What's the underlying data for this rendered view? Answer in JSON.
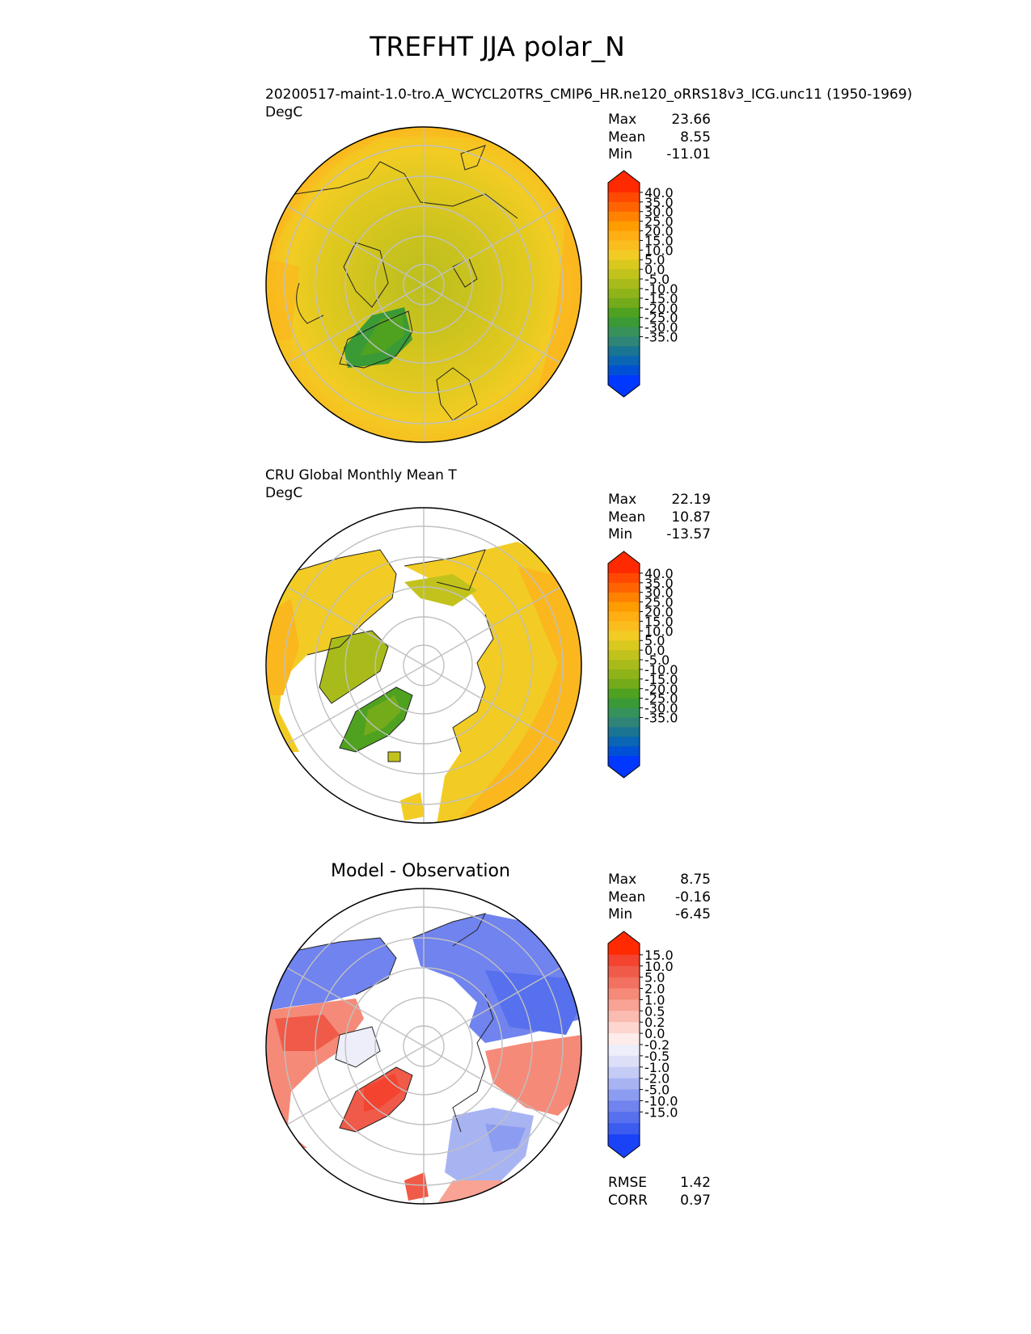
{
  "title": "TREFHT JJA polar_N",
  "panels": [
    {
      "id": "test",
      "title": "20200517-maint-1.0-tro.A_WCYCL20TRS_CMIP6_HR.ne120_oRRS18v3_ICG.unc11 (1950-1969)",
      "units": "DegC",
      "stats": {
        "max_label": "Max",
        "max": "23.66",
        "mean_label": "Mean",
        "mean": "8.55",
        "min_label": "Min",
        "min": "-11.01"
      }
    },
    {
      "id": "ref",
      "title": "CRU Global Monthly Mean T",
      "units": "DegC",
      "stats": {
        "max_label": "Max",
        "max": "22.19",
        "mean_label": "Mean",
        "mean": "10.87",
        "min_label": "Min",
        "min": "-13.57"
      }
    },
    {
      "id": "diff",
      "title": "Model - Observation",
      "units": "",
      "stats": {
        "max_label": "Max",
        "max": "8.75",
        "mean_label": "Mean",
        "mean": "-0.16",
        "min_label": "Min",
        "min": "-6.45"
      },
      "metrics": {
        "rmse_label": "RMSE",
        "rmse": "1.42",
        "corr_label": "CORR",
        "corr": "0.97"
      }
    }
  ],
  "chart_data": [
    {
      "type": "heatmap",
      "projection": "north polar stereographic",
      "colorbar": {
        "ticks": [
          "40.0",
          "35.0",
          "30.0",
          "25.0",
          "20.0",
          "15.0",
          "10.0",
          "5.0",
          "0.0",
          "-5.0",
          "-10.0",
          "-15.0",
          "-20.0",
          "-25.0",
          "-30.0",
          "-35.0"
        ],
        "colors_top_to_bottom": [
          "#ff2a00",
          "#ff4800",
          "#ff6400",
          "#ff8200",
          "#ff9c00",
          "#ffae14",
          "#fbbd1e",
          "#f2cc24",
          "#d9c81e",
          "#c2c21c",
          "#a9bb1a",
          "#8fb41a",
          "#73ab1a",
          "#4fa21f",
          "#3a9a36",
          "#36925a",
          "#2f8478",
          "#1a7494",
          "#0a65b4",
          "#0050d6",
          "#0038ff"
        ]
      },
      "stats": {
        "max": 23.66,
        "mean": 8.55,
        "min": -11.01
      }
    },
    {
      "type": "heatmap",
      "projection": "north polar stereographic",
      "colorbar": {
        "ticks": [
          "40.0",
          "35.0",
          "30.0",
          "25.0",
          "20.0",
          "15.0",
          "10.0",
          "5.0",
          "0.0",
          "-5.0",
          "-10.0",
          "-15.0",
          "-20.0",
          "-25.0",
          "-30.0",
          "-35.0"
        ]
      },
      "stats": {
        "max": 22.19,
        "mean": 10.87,
        "min": -13.57
      }
    },
    {
      "type": "heatmap",
      "projection": "north polar stereographic",
      "colorbar": {
        "ticks": [
          "15.0",
          "10.0",
          "5.0",
          "2.0",
          "1.0",
          "0.5",
          "0.2",
          "0.0",
          "-0.2",
          "-0.5",
          "-1.0",
          "-2.0",
          "-5.0",
          "-10.0",
          "-15.0"
        ],
        "colors_top_to_bottom": [
          "#ff2a00",
          "#f4432f",
          "#f05a48",
          "#f27160",
          "#f58a78",
          "#f8a394",
          "#fabcb0",
          "#fcd6cf",
          "#fdecea",
          "#eeeefa",
          "#dcdff7",
          "#c4cbf5",
          "#a8b4f2",
          "#8c9cf0",
          "#7083ee",
          "#5670ee",
          "#3c5cf0",
          "#1a43f8"
        ]
      },
      "stats": {
        "max": 8.75,
        "mean": -0.16,
        "min": -6.45
      },
      "rmse": 1.42,
      "corr": 0.97
    }
  ]
}
